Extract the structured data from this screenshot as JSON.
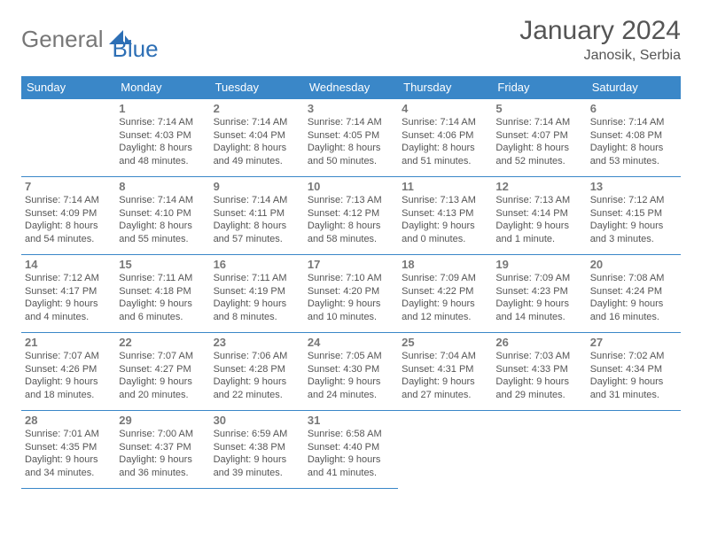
{
  "brand": {
    "part1": "General",
    "part2": "Blue"
  },
  "title": "January 2024",
  "location": "Janosik, Serbia",
  "colors": {
    "header_bg": "#3a87c8",
    "header_text": "#ffffff",
    "border": "#3a87c8",
    "body_text": "#555555",
    "brand_blue": "#2d6fb5",
    "brand_gray": "#777777"
  },
  "weekdays": [
    "Sunday",
    "Monday",
    "Tuesday",
    "Wednesday",
    "Thursday",
    "Friday",
    "Saturday"
  ],
  "weeks": [
    [
      null,
      {
        "n": "1",
        "sr": "Sunrise: 7:14 AM",
        "ss": "Sunset: 4:03 PM",
        "d1": "Daylight: 8 hours",
        "d2": "and 48 minutes."
      },
      {
        "n": "2",
        "sr": "Sunrise: 7:14 AM",
        "ss": "Sunset: 4:04 PM",
        "d1": "Daylight: 8 hours",
        "d2": "and 49 minutes."
      },
      {
        "n": "3",
        "sr": "Sunrise: 7:14 AM",
        "ss": "Sunset: 4:05 PM",
        "d1": "Daylight: 8 hours",
        "d2": "and 50 minutes."
      },
      {
        "n": "4",
        "sr": "Sunrise: 7:14 AM",
        "ss": "Sunset: 4:06 PM",
        "d1": "Daylight: 8 hours",
        "d2": "and 51 minutes."
      },
      {
        "n": "5",
        "sr": "Sunrise: 7:14 AM",
        "ss": "Sunset: 4:07 PM",
        "d1": "Daylight: 8 hours",
        "d2": "and 52 minutes."
      },
      {
        "n": "6",
        "sr": "Sunrise: 7:14 AM",
        "ss": "Sunset: 4:08 PM",
        "d1": "Daylight: 8 hours",
        "d2": "and 53 minutes."
      }
    ],
    [
      {
        "n": "7",
        "sr": "Sunrise: 7:14 AM",
        "ss": "Sunset: 4:09 PM",
        "d1": "Daylight: 8 hours",
        "d2": "and 54 minutes."
      },
      {
        "n": "8",
        "sr": "Sunrise: 7:14 AM",
        "ss": "Sunset: 4:10 PM",
        "d1": "Daylight: 8 hours",
        "d2": "and 55 minutes."
      },
      {
        "n": "9",
        "sr": "Sunrise: 7:14 AM",
        "ss": "Sunset: 4:11 PM",
        "d1": "Daylight: 8 hours",
        "d2": "and 57 minutes."
      },
      {
        "n": "10",
        "sr": "Sunrise: 7:13 AM",
        "ss": "Sunset: 4:12 PM",
        "d1": "Daylight: 8 hours",
        "d2": "and 58 minutes."
      },
      {
        "n": "11",
        "sr": "Sunrise: 7:13 AM",
        "ss": "Sunset: 4:13 PM",
        "d1": "Daylight: 9 hours",
        "d2": "and 0 minutes."
      },
      {
        "n": "12",
        "sr": "Sunrise: 7:13 AM",
        "ss": "Sunset: 4:14 PM",
        "d1": "Daylight: 9 hours",
        "d2": "and 1 minute."
      },
      {
        "n": "13",
        "sr": "Sunrise: 7:12 AM",
        "ss": "Sunset: 4:15 PM",
        "d1": "Daylight: 9 hours",
        "d2": "and 3 minutes."
      }
    ],
    [
      {
        "n": "14",
        "sr": "Sunrise: 7:12 AM",
        "ss": "Sunset: 4:17 PM",
        "d1": "Daylight: 9 hours",
        "d2": "and 4 minutes."
      },
      {
        "n": "15",
        "sr": "Sunrise: 7:11 AM",
        "ss": "Sunset: 4:18 PM",
        "d1": "Daylight: 9 hours",
        "d2": "and 6 minutes."
      },
      {
        "n": "16",
        "sr": "Sunrise: 7:11 AM",
        "ss": "Sunset: 4:19 PM",
        "d1": "Daylight: 9 hours",
        "d2": "and 8 minutes."
      },
      {
        "n": "17",
        "sr": "Sunrise: 7:10 AM",
        "ss": "Sunset: 4:20 PM",
        "d1": "Daylight: 9 hours",
        "d2": "and 10 minutes."
      },
      {
        "n": "18",
        "sr": "Sunrise: 7:09 AM",
        "ss": "Sunset: 4:22 PM",
        "d1": "Daylight: 9 hours",
        "d2": "and 12 minutes."
      },
      {
        "n": "19",
        "sr": "Sunrise: 7:09 AM",
        "ss": "Sunset: 4:23 PM",
        "d1": "Daylight: 9 hours",
        "d2": "and 14 minutes."
      },
      {
        "n": "20",
        "sr": "Sunrise: 7:08 AM",
        "ss": "Sunset: 4:24 PM",
        "d1": "Daylight: 9 hours",
        "d2": "and 16 minutes."
      }
    ],
    [
      {
        "n": "21",
        "sr": "Sunrise: 7:07 AM",
        "ss": "Sunset: 4:26 PM",
        "d1": "Daylight: 9 hours",
        "d2": "and 18 minutes."
      },
      {
        "n": "22",
        "sr": "Sunrise: 7:07 AM",
        "ss": "Sunset: 4:27 PM",
        "d1": "Daylight: 9 hours",
        "d2": "and 20 minutes."
      },
      {
        "n": "23",
        "sr": "Sunrise: 7:06 AM",
        "ss": "Sunset: 4:28 PM",
        "d1": "Daylight: 9 hours",
        "d2": "and 22 minutes."
      },
      {
        "n": "24",
        "sr": "Sunrise: 7:05 AM",
        "ss": "Sunset: 4:30 PM",
        "d1": "Daylight: 9 hours",
        "d2": "and 24 minutes."
      },
      {
        "n": "25",
        "sr": "Sunrise: 7:04 AM",
        "ss": "Sunset: 4:31 PM",
        "d1": "Daylight: 9 hours",
        "d2": "and 27 minutes."
      },
      {
        "n": "26",
        "sr": "Sunrise: 7:03 AM",
        "ss": "Sunset: 4:33 PM",
        "d1": "Daylight: 9 hours",
        "d2": "and 29 minutes."
      },
      {
        "n": "27",
        "sr": "Sunrise: 7:02 AM",
        "ss": "Sunset: 4:34 PM",
        "d1": "Daylight: 9 hours",
        "d2": "and 31 minutes."
      }
    ],
    [
      {
        "n": "28",
        "sr": "Sunrise: 7:01 AM",
        "ss": "Sunset: 4:35 PM",
        "d1": "Daylight: 9 hours",
        "d2": "and 34 minutes."
      },
      {
        "n": "29",
        "sr": "Sunrise: 7:00 AM",
        "ss": "Sunset: 4:37 PM",
        "d1": "Daylight: 9 hours",
        "d2": "and 36 minutes."
      },
      {
        "n": "30",
        "sr": "Sunrise: 6:59 AM",
        "ss": "Sunset: 4:38 PM",
        "d1": "Daylight: 9 hours",
        "d2": "and 39 minutes."
      },
      {
        "n": "31",
        "sr": "Sunrise: 6:58 AM",
        "ss": "Sunset: 4:40 PM",
        "d1": "Daylight: 9 hours",
        "d2": "and 41 minutes."
      },
      null,
      null,
      null
    ]
  ]
}
